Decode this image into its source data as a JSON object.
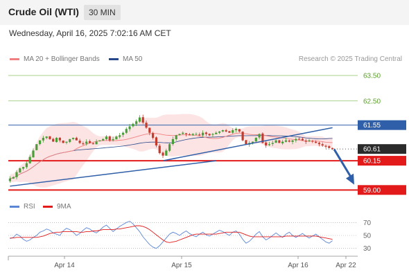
{
  "header": {
    "symbol": "Crude Oil (WTI)",
    "interval": "30 MIN",
    "datetime": "Wednesday, April 16, 2025 7:02:16 AM CET"
  },
  "legend": {
    "ma20_label": "MA 20 + Bollinger Bands",
    "ma50_label": "MA 50",
    "credit": "Research © 2025 Trading Central",
    "rsi_label": "RSI",
    "ma9_label": "9MA"
  },
  "colors": {
    "bull": "#4a9e3a",
    "bear": "#c43b2e",
    "ma20": "#f08080",
    "ma50": "#27478a",
    "bands_fill": "#fde4e4",
    "resistance": "#8cc063",
    "pivot": "#2f5fa8",
    "support": "#e31a1a",
    "rsi": "#5b86d6",
    "rsi_ma": "#e31a1a"
  },
  "chart_data": [
    {
      "type": "candlestick",
      "y_range": [
        58.9,
        63.8
      ],
      "levels": [
        {
          "value": 63.5,
          "label": "63.50",
          "kind": "resistance"
        },
        {
          "value": 62.5,
          "label": "62.50",
          "kind": "resistance"
        },
        {
          "value": 61.55,
          "label": "61.55",
          "kind": "pivot"
        },
        {
          "value": 60.61,
          "label": "60.61",
          "kind": "last"
        },
        {
          "value": 60.15,
          "label": "60.15",
          "kind": "support"
        },
        {
          "value": 59.0,
          "label": "59.00",
          "kind": "support"
        }
      ],
      "x_ticks": [
        "Apr 14",
        "Apr 15",
        "Apr 16",
        "Apr 22"
      ],
      "close": [
        59.45,
        59.5,
        59.7,
        59.85,
        59.9,
        60.05,
        60.3,
        60.55,
        60.8,
        60.95,
        61.05,
        61.1,
        61.0,
        60.9,
        61.05,
        60.95,
        60.85,
        60.9,
        61.0,
        61.05,
        60.95,
        60.85,
        60.8,
        60.9,
        60.85,
        60.8,
        60.9,
        60.95,
        61.0,
        61.1,
        60.95,
        61.0,
        61.1,
        61.15,
        61.25,
        61.4,
        61.5,
        61.6,
        61.7,
        61.85,
        61.65,
        61.45,
        61.25,
        61.05,
        60.75,
        60.45,
        60.35,
        60.55,
        60.8,
        61.0,
        61.15,
        61.2,
        61.25,
        61.2,
        61.15,
        61.2,
        61.2,
        61.15,
        61.25,
        61.2,
        61.15,
        61.2,
        61.25,
        61.3,
        61.35,
        61.3,
        61.25,
        61.35,
        61.4,
        61.3,
        60.95,
        60.8,
        60.85,
        60.9,
        61.05,
        61.2,
        60.85,
        60.75,
        60.8,
        60.85,
        60.95,
        60.85,
        60.9,
        60.95,
        60.9,
        60.95,
        61.0,
        61.0,
        60.95,
        60.9,
        60.95,
        60.9,
        60.85,
        60.8,
        60.75,
        60.7,
        60.65,
        60.61
      ],
      "trendline_support": [
        [
          0,
          59.15
        ],
        [
          62,
          60.15
        ]
      ],
      "trendline_resistance": [
        [
          46,
          60.15
        ],
        [
          97,
          61.45
        ]
      ],
      "forecast_arrow": {
        "from": 97.5,
        "start": 60.6,
        "end": 59.1
      }
    },
    {
      "type": "line",
      "name": "RSI",
      "y_ticks": [
        70,
        50,
        30
      ],
      "y_range": [
        20,
        80
      ],
      "rsi": [
        45,
        47,
        52,
        49,
        44,
        41,
        43,
        47,
        50,
        55,
        57,
        60,
        58,
        54,
        52,
        50,
        57,
        61,
        59,
        55,
        50,
        53,
        58,
        62,
        60,
        56,
        54,
        58,
        63,
        66,
        61,
        56,
        60,
        64,
        67,
        70,
        72,
        68,
        62,
        56,
        48,
        42,
        36,
        32,
        30,
        34,
        40,
        46,
        52,
        55,
        53,
        50,
        54,
        57,
        53,
        50,
        48,
        52,
        55,
        51,
        49,
        52,
        55,
        58,
        56,
        53,
        50,
        55,
        57,
        52,
        44,
        38,
        41,
        46,
        52,
        56,
        48,
        43,
        46,
        50,
        54,
        50,
        47,
        52,
        55,
        50,
        47,
        50,
        53,
        49,
        46,
        49,
        52,
        48,
        44,
        40,
        38,
        42
      ],
      "ma9": [
        46,
        46,
        47,
        47,
        47,
        47,
        47,
        47,
        47,
        48,
        49,
        51,
        53,
        54,
        55,
        55,
        56,
        56,
        56,
        56,
        56,
        55,
        55,
        56,
        56,
        57,
        57,
        58,
        59,
        59,
        59,
        59,
        60,
        60,
        61,
        62,
        63,
        64,
        65,
        65,
        64,
        62,
        59,
        55,
        51,
        47,
        43,
        40,
        39,
        40,
        41,
        43,
        45,
        47,
        49,
        51,
        52,
        52,
        52,
        52,
        52,
        52,
        52,
        53,
        54,
        55,
        55,
        55,
        55,
        55,
        53,
        51,
        49,
        48,
        48,
        48,
        48,
        48,
        48,
        48,
        48,
        48,
        48,
        49,
        49,
        49,
        49,
        49,
        49,
        49,
        49,
        49,
        49,
        48,
        47,
        46,
        45,
        44
      ]
    }
  ]
}
